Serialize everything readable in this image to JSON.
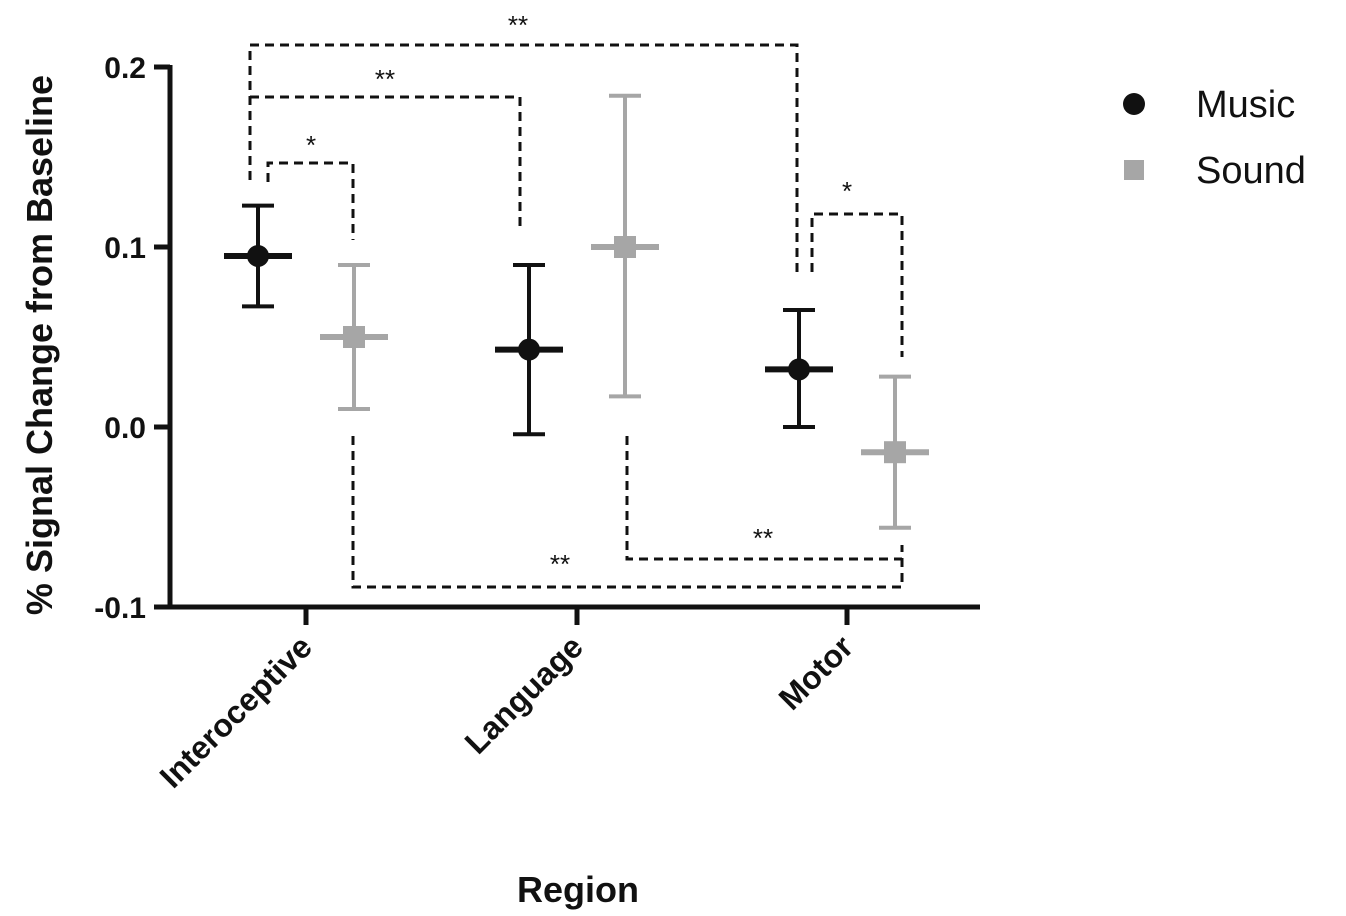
{
  "chart_data": {
    "type": "scatter",
    "xlabel": "Region",
    "ylabel": "% Signal Change from Baseline",
    "ylim": [
      -0.1,
      0.2
    ],
    "yticks": [
      -0.1,
      0.0,
      0.1,
      0.2
    ],
    "ytick_labels": [
      "-0.1",
      "0.0",
      "0.1",
      "0.2"
    ],
    "categories": [
      "Interoceptive",
      "Language",
      "Motor"
    ],
    "series": [
      {
        "name": "Music",
        "color": "#111111",
        "marker": "circle",
        "points": [
          {
            "category": "Interoceptive",
            "mean": 0.095,
            "lower": 0.067,
            "upper": 0.123
          },
          {
            "category": "Language",
            "mean": 0.043,
            "lower": -0.004,
            "upper": 0.09
          },
          {
            "category": "Motor",
            "mean": 0.032,
            "lower": 0.0,
            "upper": 0.065
          }
        ]
      },
      {
        "name": "Sound",
        "color": "#a6a6a6",
        "marker": "square",
        "points": [
          {
            "category": "Interoceptive",
            "mean": 0.05,
            "lower": 0.01,
            "upper": 0.09
          },
          {
            "category": "Language",
            "mean": 0.1,
            "lower": 0.017,
            "upper": 0.184
          },
          {
            "category": "Motor",
            "mean": -0.014,
            "lower": -0.056,
            "upper": 0.028
          }
        ]
      }
    ],
    "significance": [
      {
        "from": "Interoceptive Music",
        "to": "Motor Music",
        "label": "**",
        "side": "top"
      },
      {
        "from": "Interoceptive Music",
        "to": "Language Music",
        "label": "**",
        "side": "top"
      },
      {
        "from": "Interoceptive Music",
        "to": "Interoceptive Sound",
        "label": "*",
        "side": "top"
      },
      {
        "from": "Motor Music",
        "to": "Motor Sound",
        "label": "*",
        "side": "top"
      },
      {
        "from": "Interoceptive Sound",
        "to": "Motor Sound",
        "label": "**",
        "side": "bottom"
      },
      {
        "from": "Language Sound",
        "to": "Motor Sound",
        "label": "**",
        "side": "bottom"
      }
    ],
    "legend": {
      "position": "top-right",
      "entries": [
        "Music",
        "Sound"
      ]
    },
    "grid": false
  }
}
